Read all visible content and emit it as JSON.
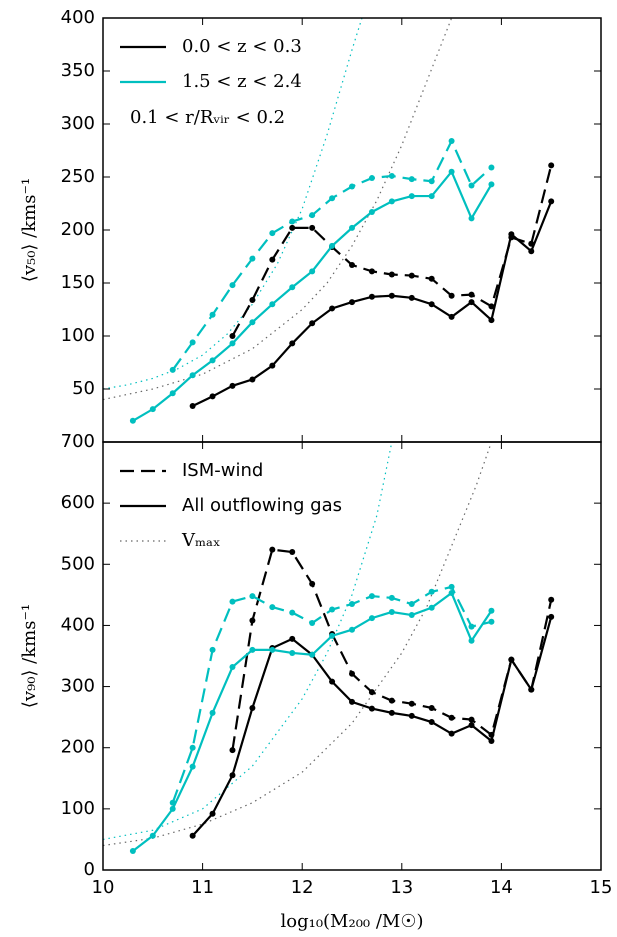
{
  "chart_data": [
    {
      "type": "line",
      "ylabel": "⟨v₅₀⟩ /kms⁻¹",
      "annotation": "0.1 < r/Rᵥᵢᵣ < 0.2",
      "xlim": [
        10,
        15
      ],
      "ylim": [
        0,
        400
      ],
      "yticks": [
        50,
        100,
        150,
        200,
        250,
        300,
        350,
        400
      ],
      "legend": [
        {
          "label": "0.0 < z < 0.3",
          "color": "#000000",
          "dash": "solid"
        },
        {
          "label": "1.5 < z < 2.4",
          "color": "#00bfbf",
          "dash": "solid"
        }
      ],
      "series": [
        {
          "color": "#00bfbf",
          "dash": "dotted",
          "marker": false,
          "x": [
            10.0,
            10.25,
            10.5,
            10.75,
            11.0,
            11.25,
            11.5,
            11.75,
            12.0,
            12.25,
            12.5,
            12.6
          ],
          "values": [
            50,
            54,
            60,
            69,
            82,
            102,
            130,
            168,
            220,
            290,
            370,
            400
          ]
        },
        {
          "color": "#666666",
          "dash": "dotted",
          "marker": false,
          "x": [
            10.0,
            10.5,
            11.0,
            11.5,
            12.0,
            12.25,
            12.5,
            12.75,
            13.0,
            13.25,
            13.5
          ],
          "values": [
            40,
            50,
            64,
            88,
            125,
            150,
            185,
            228,
            280,
            340,
            400
          ]
        },
        {
          "color": "#000000",
          "dash": "solid",
          "marker": true,
          "x": [
            10.9,
            11.1,
            11.3,
            11.5,
            11.7,
            11.9,
            12.1,
            12.3,
            12.5,
            12.7,
            12.9,
            13.1,
            13.3,
            13.5,
            13.7,
            13.9,
            14.1,
            14.3,
            14.5
          ],
          "values": [
            34,
            43,
            53,
            59,
            72,
            93,
            112,
            126,
            132,
            137,
            138,
            136,
            130,
            118,
            132,
            115,
            196,
            180,
            227
          ]
        },
        {
          "color": "#000000",
          "dash": "dashed",
          "marker": true,
          "x": [
            11.3,
            11.5,
            11.7,
            11.9,
            12.1,
            12.3,
            12.5,
            12.7,
            12.9,
            13.1,
            13.3,
            13.5,
            13.7,
            13.9,
            14.1,
            14.3,
            14.5
          ],
          "values": [
            100,
            134,
            172,
            202,
            202,
            184,
            167,
            161,
            158,
            157,
            154,
            138,
            139,
            128,
            193,
            187,
            261
          ]
        },
        {
          "color": "#00bfbf",
          "dash": "solid",
          "marker": true,
          "x": [
            10.3,
            10.5,
            10.7,
            10.9,
            11.1,
            11.3,
            11.5,
            11.7,
            11.9,
            12.1,
            12.3,
            12.5,
            12.7,
            12.9,
            13.1,
            13.3,
            13.5,
            13.7,
            13.9
          ],
          "values": [
            20,
            31,
            46,
            63,
            77,
            93,
            113,
            130,
            146,
            161,
            185,
            202,
            217,
            227,
            232,
            232,
            255,
            211,
            243
          ]
        },
        {
          "color": "#00bfbf",
          "dash": "dashed",
          "marker": true,
          "x": [
            10.7,
            10.9,
            11.1,
            11.3,
            11.5,
            11.7,
            11.9,
            12.1,
            12.3,
            12.5,
            12.7,
            12.9,
            13.1,
            13.3,
            13.5,
            13.7,
            13.9
          ],
          "values": [
            68,
            94,
            120,
            148,
            173,
            197,
            208,
            214,
            230,
            241,
            249,
            251,
            248,
            246,
            284,
            242,
            259
          ]
        }
      ]
    },
    {
      "type": "line",
      "ylabel": "⟨v₉₀⟩ /kms⁻¹",
      "xlabel": "log₁₀(M₂₀₀ /M☉)",
      "xlim": [
        10,
        15
      ],
      "xticks": [
        10,
        11,
        12,
        13,
        14,
        15
      ],
      "ylim": [
        0,
        700
      ],
      "yticks": [
        0,
        100,
        200,
        300,
        400,
        500,
        600,
        700
      ],
      "legend": [
        {
          "label": "ISM-wind",
          "color": "#000000",
          "dash": "dashed"
        },
        {
          "label": "All outflowing gas",
          "color": "#000000",
          "dash": "solid"
        },
        {
          "label": "Vₘₐₓ",
          "color": "#666666",
          "dash": "dotted"
        }
      ],
      "series": [
        {
          "color": "#00bfbf",
          "dash": "dotted",
          "marker": false,
          "x": [
            10.0,
            10.5,
            11.0,
            11.5,
            12.0,
            12.25,
            12.5,
            12.75,
            12.9
          ],
          "values": [
            50,
            65,
            100,
            170,
            280,
            355,
            450,
            580,
            700
          ]
        },
        {
          "color": "#666666",
          "dash": "dotted",
          "marker": false,
          "x": [
            10.0,
            10.5,
            11.0,
            11.5,
            12.0,
            12.5,
            13.0,
            13.25,
            13.5,
            13.75,
            13.9
          ],
          "values": [
            40,
            52,
            75,
            110,
            160,
            240,
            355,
            430,
            530,
            630,
            700
          ]
        },
        {
          "color": "#000000",
          "dash": "solid",
          "marker": true,
          "x": [
            10.9,
            11.1,
            11.3,
            11.5,
            11.7,
            11.9,
            12.1,
            12.3,
            12.5,
            12.7,
            12.9,
            13.1,
            13.3,
            13.5,
            13.7,
            13.9,
            14.1,
            14.3,
            14.5
          ],
          "values": [
            56,
            92,
            155,
            265,
            363,
            378,
            352,
            308,
            275,
            264,
            257,
            252,
            242,
            223,
            237,
            211,
            344,
            295,
            414
          ]
        },
        {
          "color": "#000000",
          "dash": "dashed",
          "marker": true,
          "x": [
            11.3,
            11.5,
            11.7,
            11.9,
            12.1,
            12.3,
            12.5,
            12.7,
            12.9,
            13.1,
            13.3,
            13.5,
            13.7,
            13.9,
            14.1,
            14.3,
            14.5
          ],
          "values": [
            196,
            408,
            524,
            520,
            468,
            386,
            321,
            291,
            277,
            272,
            265,
            249,
            246,
            221,
            344,
            295,
            442
          ]
        },
        {
          "color": "#00bfbf",
          "dash": "solid",
          "marker": true,
          "x": [
            10.3,
            10.5,
            10.7,
            10.9,
            11.1,
            11.3,
            11.5,
            11.7,
            11.9,
            12.1,
            12.3,
            12.5,
            12.7,
            12.9,
            13.1,
            13.3,
            13.5,
            13.7,
            13.9
          ],
          "values": [
            31,
            56,
            100,
            169,
            257,
            332,
            360,
            360,
            355,
            352,
            383,
            393,
            412,
            422,
            417,
            429,
            453,
            375,
            424
          ]
        },
        {
          "color": "#00bfbf",
          "dash": "dashed",
          "marker": true,
          "x": [
            10.7,
            10.9,
            11.1,
            11.3,
            11.5,
            11.7,
            11.9,
            12.1,
            12.3,
            12.5,
            12.7,
            12.9,
            13.1,
            13.3,
            13.5,
            13.7,
            13.9
          ],
          "values": [
            110,
            200,
            360,
            439,
            448,
            430,
            421,
            404,
            426,
            435,
            448,
            445,
            435,
            455,
            463,
            398,
            406
          ]
        }
      ]
    }
  ]
}
